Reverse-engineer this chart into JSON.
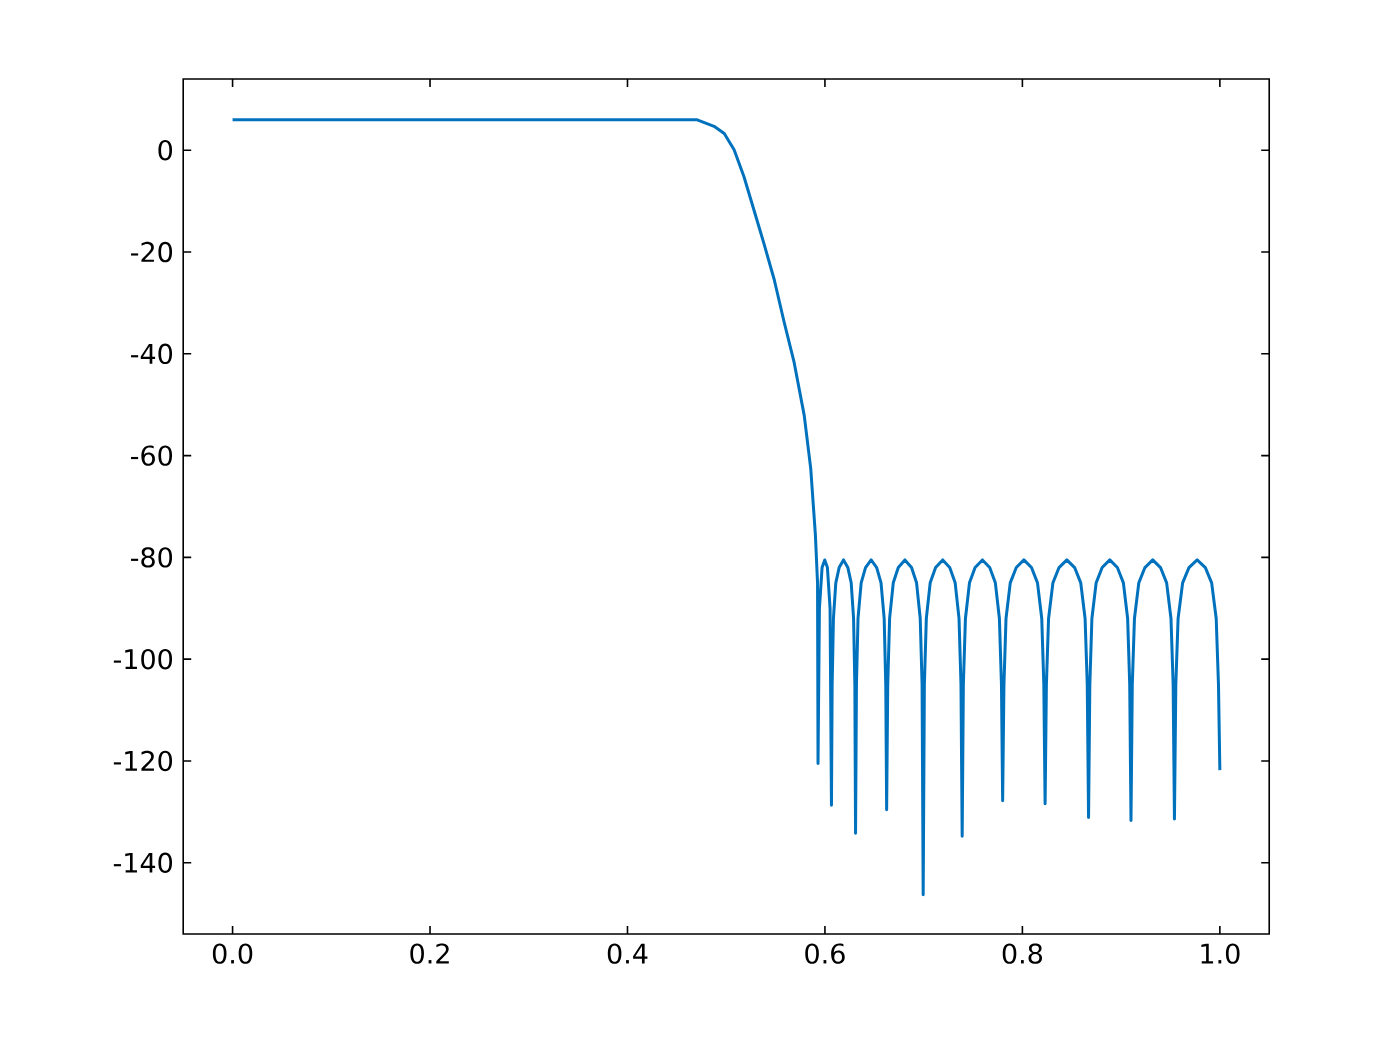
{
  "chart_data": {
    "type": "line",
    "x": [
      0,
      0.47,
      0.4877,
      0.498,
      0.508,
      0.518,
      0.528,
      0.538,
      0.5486,
      0.5587,
      0.5688,
      0.579,
      0.5856,
      0.5903,
      0.5925,
      0.593,
      0.5944,
      0.5971,
      0.5998,
      0.6025,
      0.6052,
      0.6066,
      0.6073,
      0.6086,
      0.611,
      0.6144,
      0.6188,
      0.6232,
      0.6266,
      0.629,
      0.6303,
      0.631,
      0.6319,
      0.6335,
      0.6367,
      0.6411,
      0.6468,
      0.6524,
      0.6568,
      0.66,
      0.6616,
      0.6625,
      0.6636,
      0.6655,
      0.6692,
      0.6743,
      0.681,
      0.6877,
      0.6928,
      0.6965,
      0.6984,
      0.6995,
      0.7007,
      0.7027,
      0.7066,
      0.7121,
      0.7193,
      0.7264,
      0.7319,
      0.7358,
      0.7378,
      0.739,
      0.7402,
      0.7423,
      0.7464,
      0.7521,
      0.7595,
      0.7669,
      0.7726,
      0.7767,
      0.7788,
      0.78,
      0.7813,
      0.7834,
      0.7877,
      0.7938,
      0.8015,
      0.8092,
      0.8153,
      0.8196,
      0.8217,
      0.823,
      0.8243,
      0.8265,
      0.8309,
      0.8371,
      0.845,
      0.8529,
      0.8591,
      0.8635,
      0.8657,
      0.867,
      0.8683,
      0.8704,
      0.8747,
      0.8808,
      0.8885,
      0.8962,
      0.9023,
      0.9066,
      0.9087,
      0.91,
      0.9113,
      0.9135,
      0.9179,
      0.9241,
      0.932,
      0.9399,
      0.9461,
      0.9505,
      0.9527,
      0.954,
      0.9554,
      0.9577,
      0.9623,
      0.9687,
      0.977,
      0.9853,
      0.9917,
      0.9963,
      0.9986,
      1.0
    ],
    "values": [
      6,
      6,
      4.7,
      3.3,
      0.1,
      -5.2,
      -11.7,
      -18.2,
      -25.4,
      -33.8,
      -41.7,
      -52.1,
      -62.5,
      -75.5,
      -85,
      -120.5,
      -90,
      -82,
      -80.5,
      -82,
      -90,
      -128.7,
      -105,
      -92,
      -85,
      -82,
      -80.5,
      -82,
      -85,
      -92,
      -105,
      -134.2,
      -105,
      -92,
      -85,
      -82,
      -80.5,
      -82,
      -85,
      -92,
      -105,
      -129.6,
      -105,
      -92,
      -85,
      -82,
      -80.5,
      -82,
      -85,
      -92,
      -105,
      -146.3,
      -105,
      -92,
      -85,
      -82,
      -80.5,
      -82,
      -85,
      -92,
      -105,
      -134.8,
      -105,
      -92,
      -85,
      -82,
      -80.5,
      -82,
      -85,
      -92,
      -105,
      -127.8,
      -105,
      -92,
      -85,
      -82,
      -80.5,
      -82,
      -85,
      -92,
      -105,
      -128.4,
      -105,
      -92,
      -85,
      -82,
      -80.5,
      -82,
      -85,
      -92,
      -105,
      -131.1,
      -105,
      -92,
      -85,
      -82,
      -80.5,
      -82,
      -85,
      -92,
      -105,
      -131.7,
      -105,
      -92,
      -85,
      -82,
      -80.5,
      -82,
      -85,
      -92,
      -105,
      -131.4,
      -105,
      -92,
      -85,
      -82,
      -80.5,
      -82,
      -85,
      -92,
      -105,
      -121.8
    ],
    "color": "#0072bd",
    "xlim": [
      -0.05,
      1.05
    ],
    "ylim": [
      -154,
      14
    ],
    "xticks": [
      {
        "value": 0,
        "label": "0.0"
      },
      0.2,
      0.4,
      0.6,
      0.8,
      {
        "value": 1,
        "label": "1.0"
      }
    ],
    "yticks": [
      -140,
      -120,
      -100,
      -80,
      -60,
      -40,
      -20,
      0
    ]
  }
}
